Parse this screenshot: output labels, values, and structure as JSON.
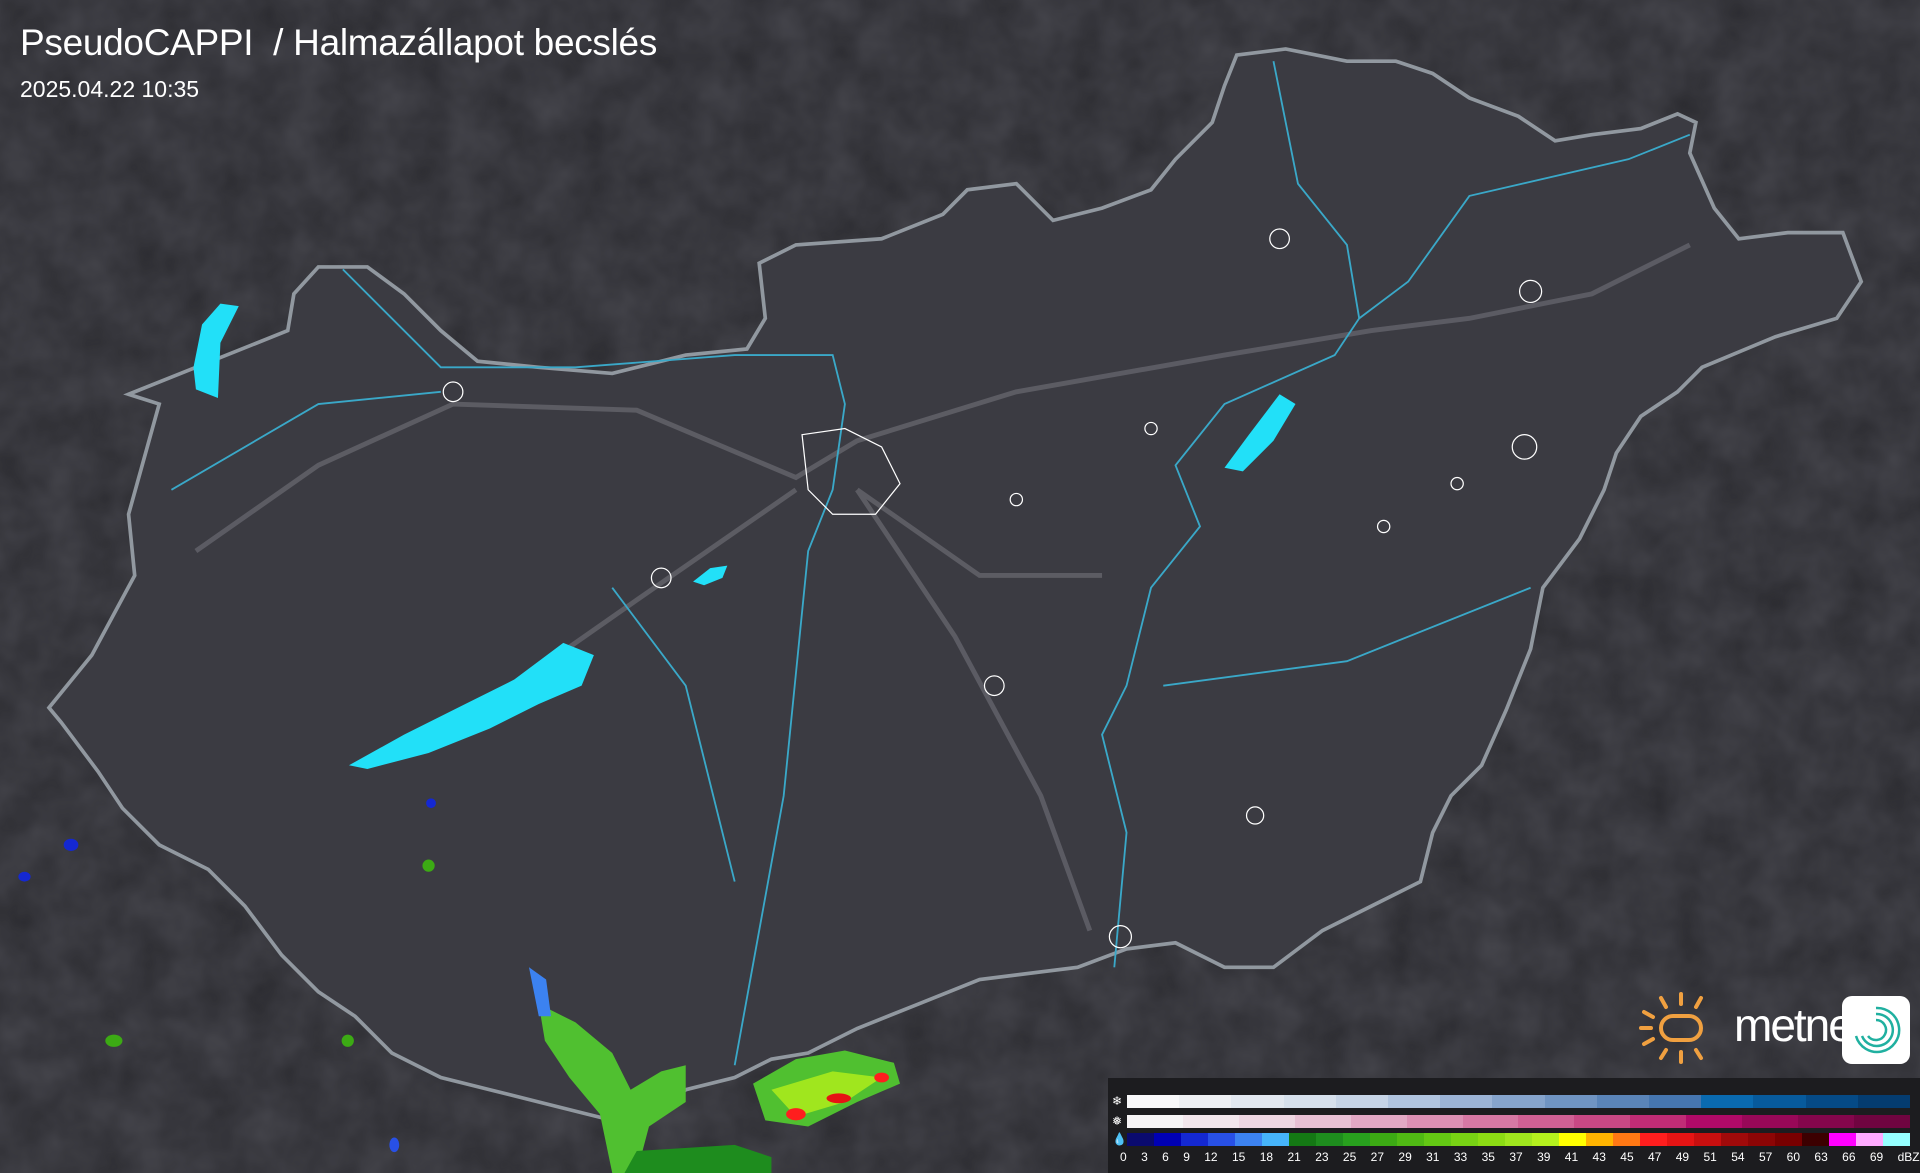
{
  "header": {
    "title": "PseudoCAPPI  / Halmazállapot becslés",
    "timestamp": "2025.04.22 10:35"
  },
  "logo": {
    "text": "metnet",
    "sun_color": "#f0a040",
    "app_icon_color": "#20b0a0"
  },
  "map": {
    "background": "#2b2b30",
    "country_fill": "#3b3b42",
    "border_color": "#a8b0b8",
    "river_color": "#3aa8c8",
    "lake_color": "#22e0f8",
    "settlement_outline": "#ffffff"
  },
  "legend": {
    "icons": {
      "snow": "snowflake-icon",
      "wet_snow": "wet-snow-icon",
      "rain": "raindrop-icon"
    },
    "snow_colors": [
      "#f8f8fa",
      "#eef0f4",
      "#e2e8f0",
      "#d6e0ec",
      "#c6d4e6",
      "#b0c4de",
      "#9cb4d6",
      "#86a4cc",
      "#7094c2",
      "#5a84b8",
      "#4676b0",
      "#0a6ab0",
      "#075a9c",
      "#054a86",
      "#043c70"
    ],
    "wet_colors": [
      "#f6f4f6",
      "#f2e6ec",
      "#eed6e2",
      "#e8c0d4",
      "#e2a8c4",
      "#dc90b4",
      "#d678a4",
      "#d06094",
      "#c84884",
      "#c02c76",
      "#b00a68",
      "#980858",
      "#84064c",
      "#700440"
    ],
    "rain_colors": [
      "#0a0a6e",
      "#0000b4",
      "#1428d2",
      "#2850e6",
      "#3c82f0",
      "#46b4fa",
      "#147814",
      "#1e8c1e",
      "#28a01e",
      "#3caa14",
      "#50b914",
      "#64c814",
      "#78d214",
      "#8cdc14",
      "#a0e61e",
      "#b4f01e",
      "#ffff00",
      "#ffb400",
      "#ff7814",
      "#ff1e1e",
      "#e61414",
      "#c80f0f",
      "#a00a0a",
      "#8c0505",
      "#780000",
      "#3c0000",
      "#ff00ff",
      "#ffaaff",
      "#96ffff"
    ],
    "labels": [
      "0",
      "3",
      "6",
      "9",
      "12",
      "15",
      "18",
      "21",
      "23",
      "25",
      "27",
      "29",
      "31",
      "33",
      "35",
      "37",
      "39",
      "41",
      "43",
      "45",
      "47",
      "49",
      "51",
      "54",
      "57",
      "60",
      "63",
      "66",
      "69",
      "dBZ"
    ]
  }
}
